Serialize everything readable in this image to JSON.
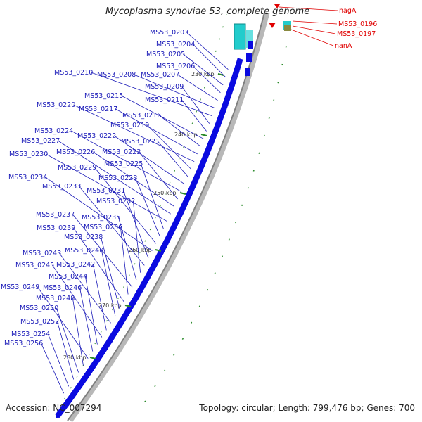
{
  "title": "Mycoplasma synoviae 53, complete genome",
  "accession_text": "Accession: NC_007294",
  "summary_text": "Topology: circular; Length: 799,476 bp; Genes: 700",
  "colors": {
    "gene": "#0a0ae0",
    "label_blue": "#1a1ab8",
    "label_red": "#e00000",
    "tick_green": "#2a8a2a",
    "backbone": "#9a9a9a",
    "cyan": "#22cccc"
  },
  "tick_labels": [
    "230 kbp",
    "240 kbp",
    "250 kbp",
    "260 kbp",
    "270 kbp",
    "280 kbp"
  ],
  "gene_labels": [
    "MS53_0203",
    "MS53_0204",
    "MS53_0205",
    "MS53_0206",
    "MS53_0207",
    "MS53_0208",
    "MS53_0210",
    "MS53_0209",
    "MS53_0211",
    "MS53_0215",
    "MS53_0216",
    "MS53_0217",
    "MS53_0220",
    "MS53_0219",
    "MS53_0221",
    "MS53_0222",
    "MS53_0224",
    "MS53_0223",
    "MS53_0226",
    "MS53_0227",
    "MS53_0230",
    "MS53_0225",
    "MS53_0228",
    "MS53_0229",
    "MS53_0234",
    "MS53_0231",
    "MS53_0233",
    "MS53_0232",
    "MS53_0235",
    "MS53_0237",
    "MS53_0236",
    "MS53_0239",
    "MS53_0238",
    "MS53_0240",
    "MS53_0243",
    "MS53_0242",
    "MS53_0245",
    "MS53_0244",
    "MS53_0246",
    "MS53_0249",
    "MS53_0248",
    "MS53_0250",
    "MS53_0252",
    "MS53_0254",
    "MS53_0256"
  ],
  "red_labels": [
    "nagA",
    "MS53_0196",
    "MS53_0197",
    "nanA"
  ]
}
